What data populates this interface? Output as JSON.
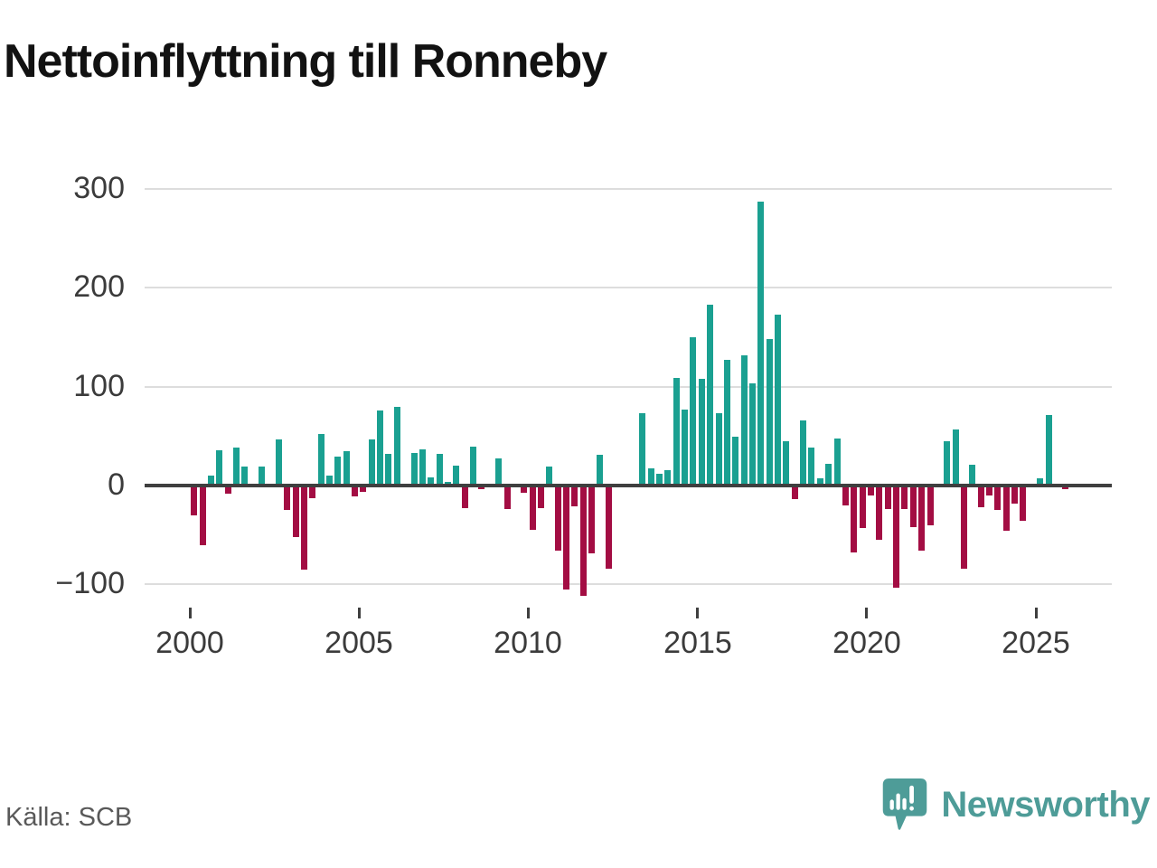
{
  "title": "Nettoinflyttning till Ronneby",
  "source": {
    "label": "Källa: SCB"
  },
  "brand": {
    "name": "Newsworthy"
  },
  "colors": {
    "positive": "#1AA091",
    "negative": "#A30D43",
    "axis": "#3F3F3F",
    "grid": "#DDDDDD",
    "brand_teal": "#4E9C98",
    "title_text": "#121212",
    "muted_text": "#595959"
  },
  "chart_data": {
    "type": "bar",
    "title": "Nettoinflyttning till Ronneby",
    "frequency": "quarterly",
    "start_quarter": "2000Q1",
    "values": [
      -30,
      -60,
      10,
      36,
      -8,
      38,
      19,
      0,
      19,
      0,
      47,
      -25,
      -52,
      -85,
      -13,
      52,
      10,
      29,
      35,
      -11,
      -6,
      47,
      76,
      32,
      80,
      0,
      33,
      37,
      8,
      32,
      4,
      20,
      -23,
      39,
      -4,
      -2,
      27,
      -24,
      0,
      -7,
      -45,
      -23,
      19,
      -66,
      -105,
      -21,
      -112,
      -69,
      31,
      -84,
      0,
      0,
      0,
      73,
      17,
      12,
      16,
      109,
      77,
      150,
      108,
      183,
      73,
      127,
      49,
      132,
      103,
      287,
      148,
      173,
      45,
      -14,
      66,
      38,
      7,
      22,
      48,
      -20,
      -68,
      -43,
      -10,
      -55,
      -24,
      -103,
      -24,
      -42,
      -66,
      -40,
      0,
      45,
      57,
      -84,
      21,
      -22,
      -10,
      -25,
      -46,
      -18,
      -36,
      0,
      7,
      71,
      0,
      -4
    ],
    "yticks": [
      {
        "value": 300,
        "label": "300"
      },
      {
        "value": 200,
        "label": "200"
      },
      {
        "value": 100,
        "label": "100"
      },
      {
        "value": 0,
        "label": "0"
      },
      {
        "value": -100,
        "label": "−100"
      }
    ],
    "xticks": [
      {
        "value": 2000,
        "label": "2000"
      },
      {
        "value": 2005,
        "label": "2005"
      },
      {
        "value": 2010,
        "label": "2010"
      },
      {
        "value": 2015,
        "label": "2015"
      },
      {
        "value": 2020,
        "label": "2020"
      },
      {
        "value": 2025,
        "label": "2025"
      }
    ],
    "ylim": [
      -130,
      310
    ],
    "xlabel": "",
    "ylabel": "",
    "grid": "horizontal",
    "legend": "none"
  }
}
